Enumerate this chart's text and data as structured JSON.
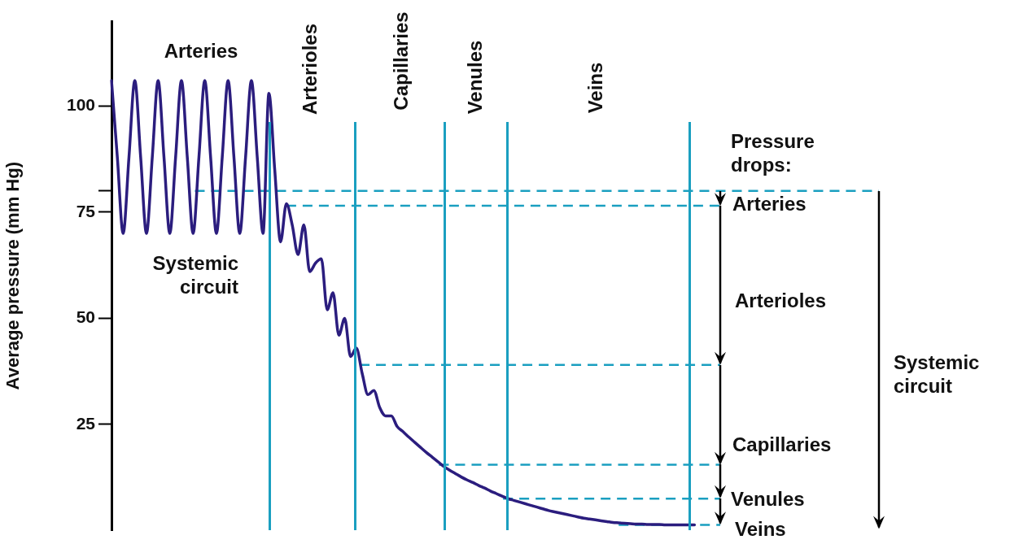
{
  "chart_data": {
    "type": "line",
    "ylabel": "Average pressure (mm Hg)",
    "categories": [
      null,
      null,
      null,
      null,
      null,
      null,
      null,
      null,
      null,
      null,
      null,
      null,
      null,
      null,
      null,
      null,
      null,
      null,
      null,
      null,
      null,
      null,
      null,
      null,
      null,
      null,
      null,
      null,
      null,
      null,
      null,
      null,
      null,
      null,
      null,
      null,
      null,
      null,
      null,
      null,
      null,
      null,
      null,
      null,
      null,
      null,
      null,
      null,
      null,
      null,
      null,
      null,
      null,
      null,
      null,
      null,
      null,
      null,
      null,
      null,
      null,
      null,
      null,
      null,
      null,
      null,
      null,
      null,
      null,
      null,
      null,
      null,
      null,
      null,
      null,
      null,
      null,
      null,
      null,
      null,
      null,
      null,
      null,
      null,
      null,
      null,
      null,
      null,
      null,
      null,
      null,
      null,
      null,
      null,
      null,
      null,
      null,
      null,
      null,
      null,
      null,
      null,
      null,
      null,
      null
    ],
    "series": [
      {
        "color": "#2b1d7e",
        "values": [
          106,
          88,
          70,
          88,
          106,
          88,
          70,
          88,
          106,
          88,
          70,
          88,
          106,
          88,
          70,
          88,
          106,
          88,
          70,
          88,
          106,
          88,
          70,
          88,
          106,
          88,
          70,
          103,
          85,
          68,
          77,
          72,
          65,
          72,
          61,
          63,
          64,
          52,
          56,
          46,
          50,
          41,
          43,
          37,
          32,
          33,
          29,
          27,
          27,
          24.5,
          23.3,
          22,
          20.8,
          19.6,
          18.4,
          17.3,
          16.2,
          15.1,
          14.2,
          13.4,
          12.6,
          11.9,
          11.3,
          10.6,
          10,
          9.3,
          8.7,
          8.1,
          7.5,
          7.1,
          6.7,
          6.3,
          5.9,
          5.5,
          5.1,
          4.7,
          4.4,
          4.1,
          3.8,
          3.5,
          3.2,
          2.9,
          2.7,
          2.5,
          2.3,
          2.1,
          1.9,
          1.8,
          1.7,
          1.6,
          1.5,
          1.5,
          1.4,
          1.4,
          1.4,
          1.3,
          1.3,
          1.3,
          1.3,
          1.3,
          1.3,
          null,
          null,
          null,
          null
        ]
      }
    ],
    "ylim": [
      0,
      120
    ],
    "yticks": [
      {
        "value": 25,
        "label": "25"
      },
      {
        "value": 50,
        "label": "50"
      },
      {
        "value": 75,
        "label": "75"
      },
      {
        "value": 80,
        "label": null
      },
      {
        "value": 100,
        "label": "100"
      }
    ],
    "tick_labels": "y",
    "grid": false,
    "legend": false,
    "marker": "none",
    "line_style": "solid",
    "ref_lines": [
      {
        "axis": "y",
        "value": 80,
        "color": "#1a9fc0",
        "line_style": "dashed"
      },
      {
        "axis": "y",
        "value": 76.5,
        "color": "#1a9fc0",
        "line_style": "dashed"
      },
      {
        "axis": "y",
        "value": 39,
        "color": "#1a9fc0",
        "line_style": "dashed"
      },
      {
        "axis": "y",
        "value": 15.5,
        "color": "#1a9fc0",
        "line_style": "dashed"
      },
      {
        "axis": "y",
        "value": 7.5,
        "color": "#1a9fc0",
        "line_style": "dashed"
      },
      {
        "axis": "y",
        "value": 1.3,
        "color": "#1a9fc0",
        "line_style": "dashed"
      }
    ],
    "annotations": [
      "Arteries",
      "Arterioles",
      "Capillaries",
      "Venules",
      "Veins",
      "Systemic\ncircuit",
      "Pressure\ndrops:",
      "Arteries",
      "Arterioles",
      "Capillaries",
      "Venules",
      "Veins",
      "Systemic\ncircuit"
    ]
  }
}
